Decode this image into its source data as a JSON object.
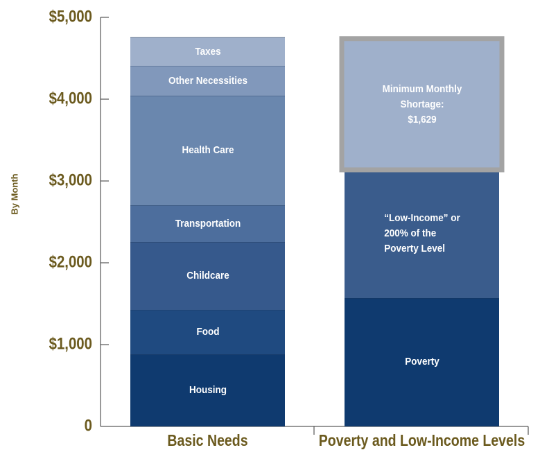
{
  "chart_data": {
    "type": "stacked_bar",
    "y_label": "By Month",
    "categories": [
      "Basic Needs",
      "Poverty and Low-Income Levels"
    ],
    "series": [
      {
        "name": "Housing",
        "color": "#0f3a6f",
        "values": [
          880,
          null
        ]
      },
      {
        "name": "Food",
        "color": "#1f4a80",
        "values": [
          544,
          null
        ]
      },
      {
        "name": "Childcare",
        "color": "#36598c",
        "values": [
          830,
          null
        ]
      },
      {
        "name": "Transportation",
        "color": "#4d6e9d",
        "values": [
          449,
          null
        ]
      },
      {
        "name": "Health Care",
        "color": "#6a87ae",
        "values": [
          1339,
          null
        ]
      },
      {
        "name": "Other Necessities",
        "color": "#8198bb",
        "values": [
          365,
          null
        ]
      },
      {
        "name": "Taxes",
        "color": "#9fb0cb",
        "values": [
          347,
          null
        ]
      },
      {
        "name": "Poverty",
        "color": "#0f3a6f",
        "values": [
          null,
          1568
        ]
      },
      {
        "name": "“Low-Income” or\n200% of the\nPoverty Level",
        "color": "#3a5c8c",
        "values": [
          null,
          1568
        ]
      },
      {
        "name": "Minimum Monthly\nShortage:\n$1,629",
        "color": "#9fb0cb",
        "border": "#a3a3a3",
        "values": [
          null,
          1629
        ]
      }
    ],
    "ylim": [
      0,
      5000
    ],
    "yticks": [
      {
        "value": 0,
        "label": "0"
      },
      {
        "value": 1000,
        "label": "$1,000"
      },
      {
        "value": 2000,
        "label": "$2,000"
      },
      {
        "value": 3000,
        "label": "$3,000"
      },
      {
        "value": 4000,
        "label": "$4,000"
      },
      {
        "value": 5000,
        "label": "$5,000"
      }
    ],
    "label_color": "#6b5a1e"
  }
}
